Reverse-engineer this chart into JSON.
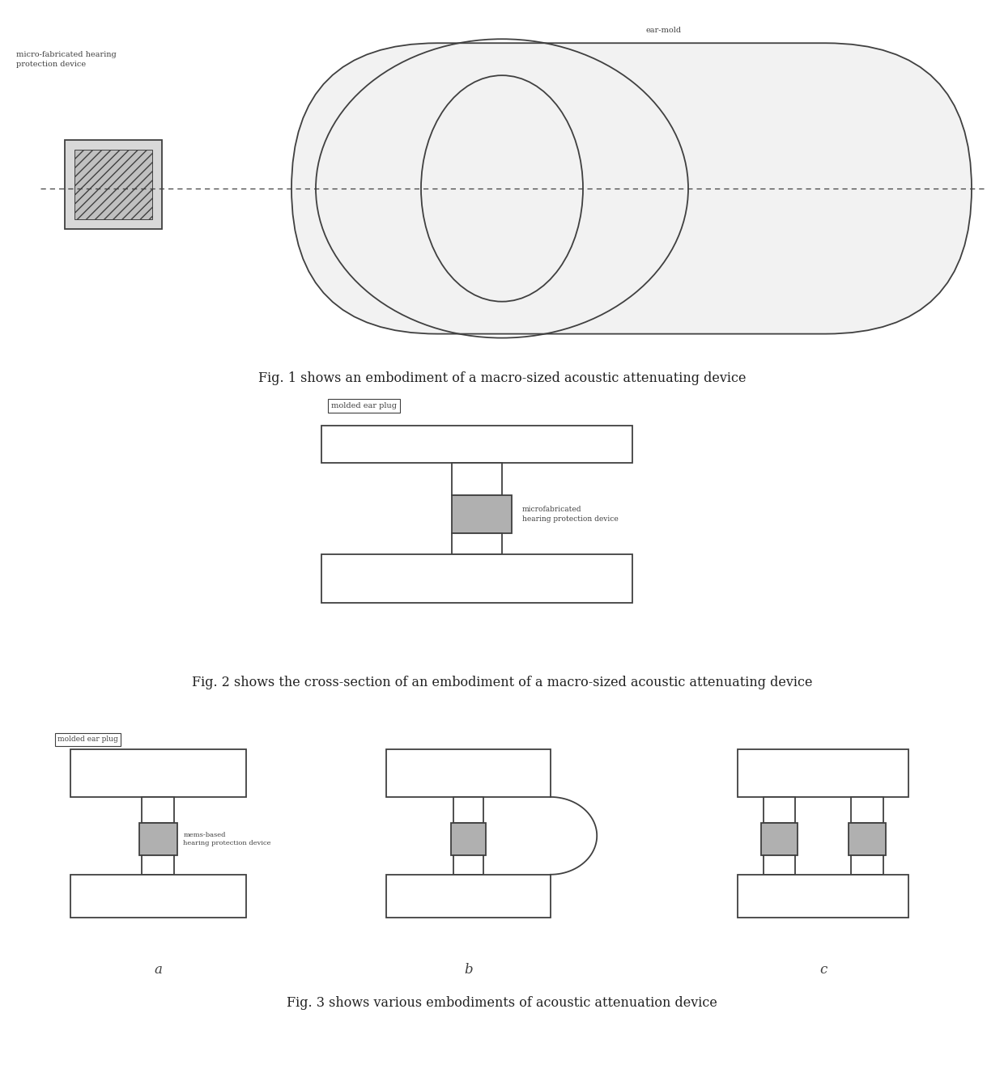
{
  "fig1_caption": "Fig. 1 shows an embodiment of a macro-sized acoustic attenuating device",
  "fig2_caption": "Fig. 2 shows the cross-section of an embodiment of a macro-sized acoustic attenuating device",
  "fig3_caption": "Fig. 3 shows various embodiments of acoustic attenuation device",
  "label_ear_mold": "ear-mold",
  "label_micro_fab": "micro-fabricated hearing\nprotection device",
  "label_molded_ear_plug_fig2": "molded ear plug",
  "label_microfab_fig2": "microfabricated\nhearing protection device",
  "label_molded_ear_plug_fig3a": "molded ear plug",
  "label_mems_fig3a": "mems-based\nhearing protection device",
  "label_a": "a",
  "label_b": "b",
  "label_c": "c",
  "bg_color": "#ffffff",
  "line_color": "#404040",
  "device_fill": "#b0b0b0",
  "white_fill": "#ffffff",
  "light_fill": "#f2f2f2"
}
